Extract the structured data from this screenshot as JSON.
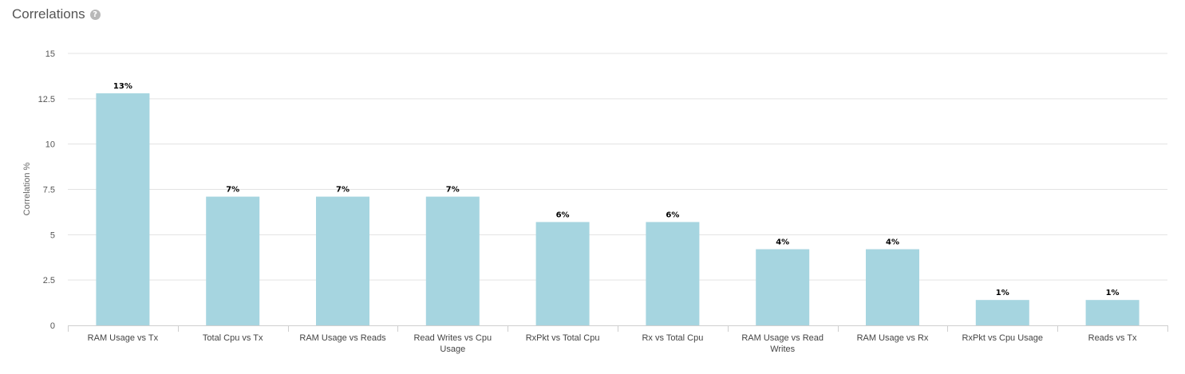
{
  "header": {
    "title": "Correlations",
    "help_icon": "question-circle-icon"
  },
  "chart_data": {
    "type": "bar",
    "title": "Correlations",
    "xlabel": "",
    "ylabel": "Correlation %",
    "ylim": [
      0,
      15
    ],
    "yticks": [
      0,
      2.5,
      5,
      7.5,
      10,
      12.5,
      15
    ],
    "ytick_labels": [
      "0",
      "2.5",
      "5",
      "7.5",
      "10",
      "12.5",
      "15"
    ],
    "grid": true,
    "bar_color": "#a6d5e0",
    "categories": [
      "RAM Usage vs Tx",
      "Total Cpu vs Tx",
      "RAM Usage vs Reads",
      "Read Writes vs Cpu Usage",
      "RxPkt vs Total Cpu",
      "Rx vs Total Cpu",
      "RAM Usage vs Read Writes",
      "RAM Usage vs Rx",
      "RxPkt vs Cpu Usage",
      "Reads vs Tx"
    ],
    "values": [
      12.8,
      7.1,
      7.1,
      7.1,
      5.7,
      5.7,
      4.2,
      4.2,
      1.4,
      1.4
    ],
    "data_labels": [
      "13%",
      "7%",
      "7%",
      "7%",
      "6%",
      "6%",
      "4%",
      "4%",
      "1%",
      "1%"
    ]
  }
}
